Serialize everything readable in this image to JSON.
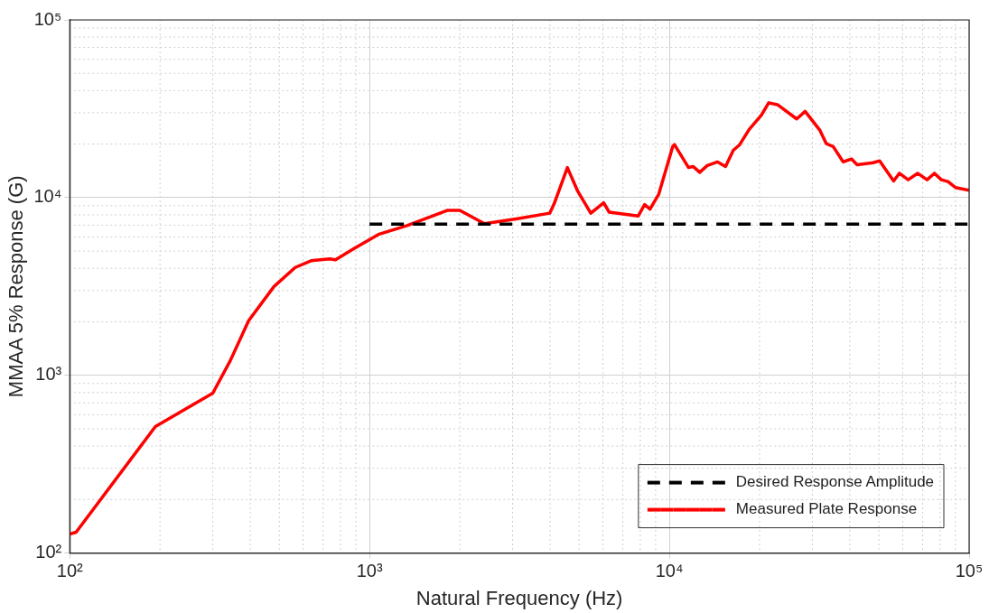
{
  "chart_data": {
    "type": "line",
    "xlabel": "Natural Frequency (Hz)",
    "ylabel": "MMAA 5% Response (G)",
    "log": "xy",
    "grid": true,
    "legend": "bottom right",
    "line_style": "solid",
    "marker": "none",
    "xlim": [
      100,
      100000
    ],
    "xticks": [
      {
        "value": 100,
        "label": "10²"
      },
      {
        "value": 1000,
        "label": "10³"
      },
      {
        "value": 10000,
        "label": "10⁴"
      },
      {
        "value": 100000,
        "label": "10⁵"
      }
    ],
    "ylim": [
      100,
      100000
    ],
    "yticks": [
      {
        "value": 100,
        "label": "10²"
      },
      {
        "value": 1000,
        "label": "10³"
      },
      {
        "value": 10000,
        "label": "10⁴"
      },
      {
        "value": 100000,
        "label": "10⁵"
      }
    ],
    "series": [
      {
        "name": "Desired Response Amplitude",
        "color": "#000000",
        "line_style": "dashed",
        "x": [
          1000,
          100000
        ],
        "values": [
          7100,
          7100
        ]
      },
      {
        "name": "Measured Plate Response",
        "color": "#ff0000",
        "x": [
          100,
          105,
          193,
          300,
          343,
          395,
          480,
          565,
          638,
          736,
          770,
          888,
          1077,
          1334,
          1815,
          2000,
          2417,
          3083,
          3990,
          4130,
          4570,
          4950,
          5470,
          6040,
          6300,
          7870,
          8270,
          8620,
          9220,
          10260,
          10400,
          11590,
          12000,
          12630,
          13380,
          14460,
          15400,
          16340,
          17170,
          18460,
          20270,
          21450,
          22940,
          26600,
          28380,
          31800,
          33400,
          35200,
          38000,
          40500,
          42300,
          47800,
          50300,
          56000,
          58500,
          62600,
          67300,
          72400,
          76600,
          80800,
          85000,
          90000,
          100000
        ],
        "values": [
          128,
          131,
          515,
          794,
          1208,
          2028,
          3160,
          4045,
          4410,
          4520,
          4470,
          5175,
          6230,
          6960,
          8475,
          8475,
          7130,
          7590,
          8170,
          9250,
          14760,
          10840,
          8170,
          9350,
          8280,
          7870,
          9130,
          8610,
          10450,
          19360,
          19860,
          14760,
          14960,
          13870,
          15140,
          15890,
          14960,
          18440,
          19860,
          24200,
          29100,
          34150,
          33330,
          27700,
          30550,
          23880,
          20090,
          19360,
          15890,
          16500,
          15300,
          15700,
          16100,
          12400,
          13700,
          12600,
          13700,
          12600,
          13700,
          12600,
          12300,
          11400,
          11000
        ]
      }
    ]
  }
}
